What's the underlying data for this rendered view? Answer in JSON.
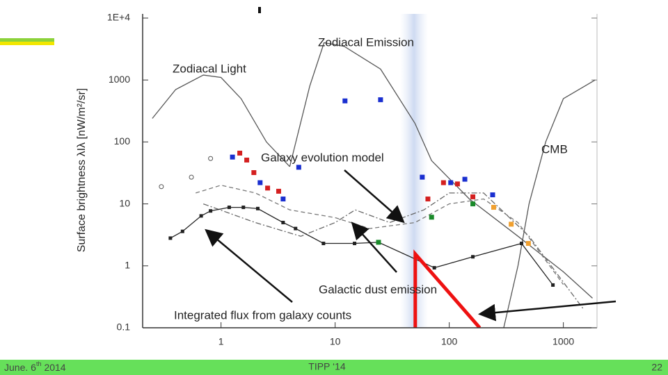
{
  "chart_data": {
    "type": "line",
    "ylabel": "Surface brightness λIλ [nW/m²/sr]",
    "xscale": "log",
    "yscale": "log",
    "xlim": [
      0.2,
      2000
    ],
    "ylim": [
      0.1,
      10000
    ],
    "xticks": [
      1,
      10,
      100,
      1000
    ],
    "yticks": [
      0.1,
      1,
      10,
      100,
      1000,
      {
        "value": 10000,
        "label": "1E+4"
      }
    ],
    "series": [
      {
        "name": "Zodiacal Light",
        "color": "#555555",
        "style": "solid",
        "x": [
          0.25,
          0.4,
          0.7,
          1,
          1.5,
          2.5,
          4
        ],
        "values": [
          240,
          700,
          1200,
          1100,
          500,
          100,
          40
        ]
      },
      {
        "name": "Zodiacal Emission",
        "color": "#555555",
        "style": "solid",
        "x": [
          4,
          6,
          8,
          12,
          25,
          50,
          70,
          150,
          400,
          1000,
          1800
        ],
        "values": [
          40,
          800,
          4000,
          3500,
          1500,
          200,
          50,
          12,
          3,
          0.8,
          0.3
        ]
      },
      {
        "name": "CMB",
        "color": "#555555",
        "style": "solid",
        "x": [
          300,
          400,
          500,
          700,
          1000,
          1900
        ],
        "values": [
          0.1,
          1,
          10,
          100,
          500,
          1000
        ]
      },
      {
        "name": "Galaxy evolution model",
        "color": "#777777",
        "style": "dashed",
        "x": [
          0.6,
          1,
          2,
          4,
          10,
          20,
          50,
          100,
          200,
          400,
          1000
        ],
        "values": [
          15,
          20,
          15,
          8,
          6,
          4,
          5,
          10,
          12,
          5,
          0.5
        ]
      },
      {
        "name": "Galactic dust emission",
        "color": "#666666",
        "style": "dashdot",
        "x": [
          0.7,
          2,
          5,
          10,
          15,
          30,
          60,
          100,
          200,
          500,
          1500
        ],
        "values": [
          10,
          5,
          3,
          5,
          8,
          5,
          8,
          15,
          15,
          3,
          0.2
        ]
      },
      {
        "name": "Integrated flux from galaxy counts",
        "color": "#222222",
        "style": "marked",
        "x": [
          0.36,
          0.46,
          0.67,
          0.81,
          1.18,
          1.57,
          2.1,
          3.5,
          4.5,
          7.9,
          14.8,
          24,
          74,
          161,
          430,
          810
        ],
        "values": [
          2.8,
          3.6,
          6.4,
          7.7,
          8.8,
          8.8,
          8.4,
          5.0,
          4.0,
          2.3,
          2.3,
          2.4,
          0.93,
          1.4,
          2.3,
          0.49
        ]
      },
      {
        "color": "#1a2fd0",
        "style": "points",
        "x": [
          1.26,
          2.2,
          3.5,
          4.8,
          12.2,
          25,
          58,
          103,
          137,
          240
        ],
        "values": [
          57,
          22,
          12,
          39,
          460,
          480,
          27,
          22,
          25,
          14
        ]
      },
      {
        "color": "#d42020",
        "style": "points",
        "x": [
          1.46,
          1.68,
          1.94,
          2.56,
          3.2,
          65,
          89,
          118,
          161
        ],
        "values": [
          66,
          51,
          32,
          18,
          16,
          12,
          22,
          21,
          13
        ]
      },
      {
        "color": "#f0a030",
        "style": "points",
        "x": [
          245,
          349,
          494
        ],
        "values": [
          8.8,
          4.7,
          2.3
        ]
      },
      {
        "color": "#1a8a2a",
        "style": "points",
        "x": [
          24,
          70,
          161
        ],
        "values": [
          2.4,
          6.1,
          10
        ]
      },
      {
        "color": "#555555",
        "style": "open",
        "x": [
          0.3,
          0.55,
          0.81
        ],
        "values": [
          19,
          27,
          54
        ]
      },
      {
        "color": "#ee1111",
        "style": "bold",
        "x": [
          50.4,
          50.4,
          185
        ],
        "values": [
          0.1,
          1.55,
          0.1
        ]
      }
    ]
  },
  "footer": {
    "date": "June. 6",
    "date_suffix": "th",
    "year": "2014",
    "event": "TIPP ‘14",
    "page": "22"
  }
}
